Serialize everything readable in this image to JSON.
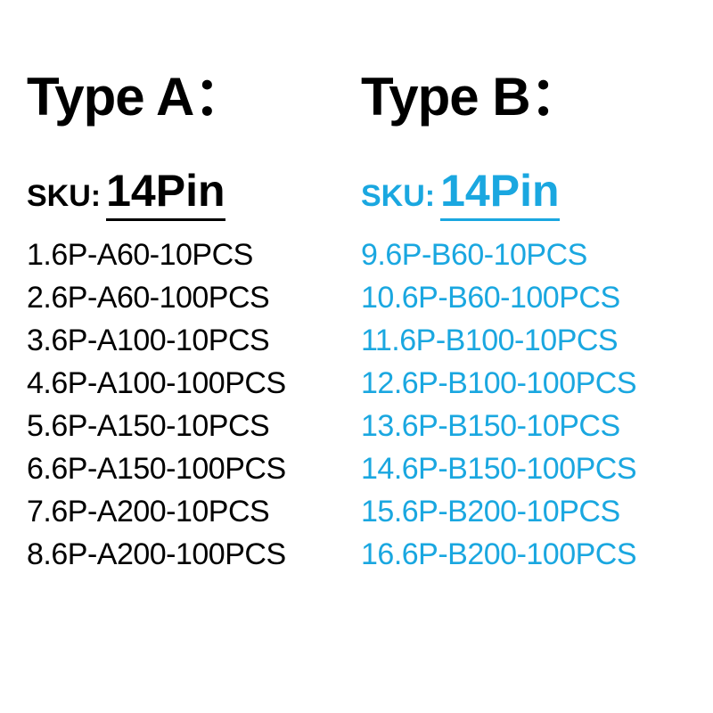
{
  "colors": {
    "colA": "#000000",
    "colB": "#1aa7e0"
  },
  "fontsizes": {
    "type_header": 60,
    "sku_label": 34,
    "sku_value": 50,
    "list_item": 34
  },
  "line_height_list": 48,
  "columns": {
    "A": {
      "header": "Type A：",
      "sku_label": "SKU:",
      "sku_value": "14Pin",
      "items": [
        "1.6P-A60-10PCS",
        "2.6P-A60-100PCS",
        "3.6P-A100-10PCS",
        "4.6P-A100-100PCS",
        "5.6P-A150-10PCS",
        "6.6P-A150-100PCS",
        "7.6P-A200-10PCS",
        "8.6P-A200-100PCS"
      ]
    },
    "B": {
      "header": "Type B：",
      "sku_label": "SKU:",
      "sku_value": "14Pin",
      "items": [
        "9.6P-B60-10PCS",
        "10.6P-B60-100PCS",
        "11.6P-B100-10PCS",
        "12.6P-B100-100PCS",
        "13.6P-B150-10PCS",
        "14.6P-B150-100PCS",
        "15.6P-B200-10PCS",
        "16.6P-B200-100PCS"
      ]
    }
  }
}
